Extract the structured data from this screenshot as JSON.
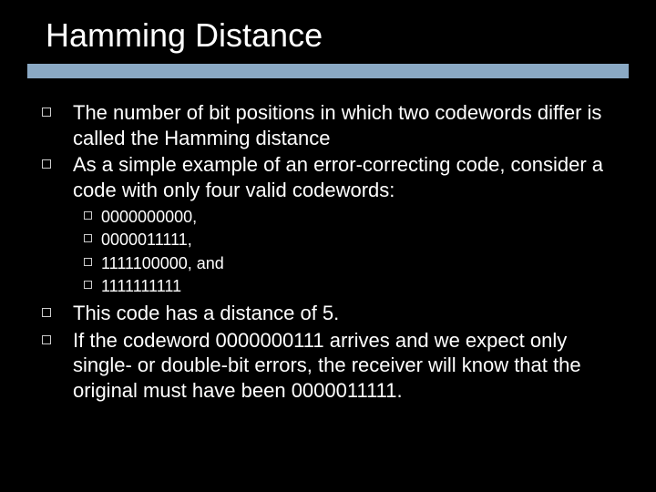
{
  "slide": {
    "title": "Hamming Distance",
    "accent_color": "#8aa9c4",
    "background_color": "#000000",
    "text_color": "#ffffff",
    "title_fontsize": 36,
    "body_fontsize": 22,
    "sub_fontsize": 18,
    "bullets": [
      {
        "text": "The number of bit positions in which two codewords differ is called the Hamming distance"
      },
      {
        "text": "As a simple example of an error-correcting code, consider a code with only four valid codewords:"
      }
    ],
    "sub_bullets": [
      {
        "text": "0000000000,"
      },
      {
        "text": "0000011111,"
      },
      {
        "text": "1111100000, and"
      },
      {
        "text": "1111111111"
      }
    ],
    "bullets_after": [
      {
        "text": "This code has a distance of 5."
      },
      {
        "text": "If the codeword 0000000111 arrives and we expect only single- or double-bit errors, the receiver will know that the original must have been 0000011111."
      }
    ]
  }
}
